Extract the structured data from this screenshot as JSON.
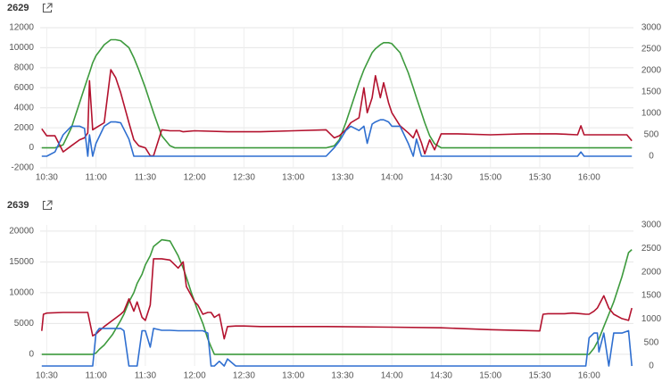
{
  "chart_data": [
    {
      "type": "line",
      "title": "2629",
      "x": [
        627,
        630,
        635,
        640,
        645,
        650,
        653,
        655,
        656,
        658,
        660,
        665,
        669,
        672,
        675,
        680,
        683,
        686,
        690,
        693,
        695,
        700,
        705,
        708,
        711,
        713,
        720,
        740,
        760,
        780,
        800,
        805,
        808,
        812,
        815,
        820,
        823,
        825,
        828,
        830,
        833,
        835,
        838,
        840,
        845,
        850,
        853,
        855,
        858,
        860,
        863,
        866,
        870,
        880,
        900,
        920,
        940,
        953,
        955,
        957,
        960,
        975,
        983,
        986
      ],
      "series": [
        {
          "color": "#3d9a3d",
          "values": [
            0,
            0,
            0,
            300,
            2000,
            4500,
            6000,
            7000,
            7500,
            8500,
            9200,
            10300,
            10800,
            10800,
            10700,
            10000,
            9000,
            7800,
            6000,
            4500,
            3500,
            1200,
            200,
            0,
            0,
            0,
            0,
            0,
            0,
            0,
            0,
            200,
            800,
            2500,
            4000,
            6500,
            7800,
            8500,
            9500,
            9900,
            10300,
            10500,
            10500,
            10400,
            9500,
            7500,
            6000,
            5000,
            3500,
            2500,
            1200,
            400,
            0,
            0,
            0,
            0,
            0,
            0,
            0,
            0,
            0,
            0,
            0,
            0
          ]
        },
        {
          "color": "#b3122e",
          "values": [
            1900,
            1200,
            1200,
            -400,
            200,
            800,
            1000,
            1500,
            6700,
            1800,
            2000,
            2500,
            7800,
            7000,
            5500,
            2500,
            800,
            200,
            0,
            -800,
            -800,
            1800,
            1700,
            1700,
            1700,
            1600,
            1700,
            1600,
            1600,
            1700,
            1800,
            1000,
            1200,
            1800,
            2500,
            3000,
            6000,
            3500,
            5000,
            7200,
            5000,
            6500,
            4500,
            3500,
            2200,
            1500,
            1000,
            1800,
            500,
            -600,
            800,
            -200,
            1400,
            1400,
            1300,
            1400,
            1400,
            1300,
            2200,
            1300,
            1300,
            1300,
            1300,
            700
          ]
        },
        {
          "color": "#2f6fd0",
          "axis": "y2",
          "values": [
            0,
            0,
            100,
            500,
            700,
            700,
            650,
            0,
            500,
            0,
            300,
            700,
            800,
            800,
            780,
            400,
            0,
            0,
            0,
            0,
            0,
            0,
            0,
            0,
            0,
            0,
            0,
            0,
            0,
            0,
            0,
            200,
            350,
            600,
            700,
            600,
            700,
            300,
            750,
            800,
            850,
            850,
            800,
            700,
            700,
            300,
            0,
            400,
            0,
            0,
            0,
            0,
            0,
            0,
            0,
            0,
            0,
            0,
            100,
            0,
            0,
            0,
            0,
            0
          ]
        }
      ],
      "xlim": [
        626,
        987
      ],
      "xticks": [
        {
          "value": 630,
          "label": "10:30"
        },
        {
          "value": 660,
          "label": "11:00"
        },
        {
          "value": 690,
          "label": "11:30"
        },
        {
          "value": 720,
          "label": "12:00"
        },
        {
          "value": 750,
          "label": "12:30"
        },
        {
          "value": 780,
          "label": "13:00"
        },
        {
          "value": 810,
          "label": "13:30"
        },
        {
          "value": 840,
          "label": "14:00"
        },
        {
          "value": 870,
          "label": "14:30"
        },
        {
          "value": 900,
          "label": "15:00"
        },
        {
          "value": 930,
          "label": "15:30"
        },
        {
          "value": 960,
          "label": "16:00"
        }
      ],
      "ylim": [
        -2000,
        12000
      ],
      "yticks": [
        -2000,
        0,
        2000,
        4000,
        6000,
        8000,
        10000,
        12000
      ],
      "y2lim": [
        -270,
        3000
      ],
      "y2ticks": [
        0,
        500,
        1000,
        1500,
        2000,
        2500,
        3000
      ],
      "grid": true
    },
    {
      "type": "line",
      "title": "2639",
      "x": [
        627,
        628,
        630,
        640,
        650,
        655,
        658,
        660,
        662,
        665,
        670,
        675,
        677,
        680,
        683,
        685,
        688,
        690,
        693,
        695,
        700,
        705,
        710,
        713,
        715,
        718,
        720,
        722,
        725,
        728,
        730,
        732,
        735,
        738,
        740,
        745,
        750,
        760,
        780,
        800,
        840,
        870,
        900,
        930,
        932,
        935,
        940,
        945,
        950,
        955,
        958,
        960,
        963,
        965,
        966,
        969,
        972,
        975,
        980,
        984,
        986
      ],
      "series": [
        {
          "color": "#3d9a3d",
          "values": [
            0,
            0,
            0,
            0,
            0,
            0,
            0,
            200,
            800,
            1500,
            3200,
            5500,
            6500,
            8500,
            10000,
            11500,
            13000,
            14500,
            16000,
            17500,
            18600,
            18400,
            16000,
            14000,
            12500,
            10000,
            8500,
            7000,
            5000,
            2500,
            1200,
            0,
            0,
            0,
            0,
            0,
            0,
            0,
            0,
            0,
            0,
            0,
            0,
            0,
            0,
            0,
            0,
            0,
            0,
            0,
            0,
            0,
            1000,
            2000,
            2500,
            4500,
            6500,
            8500,
            12600,
            16500,
            17000
          ]
        },
        {
          "color": "#b3122e",
          "values": [
            3800,
            6500,
            6700,
            6800,
            6800,
            6800,
            3000,
            3300,
            3800,
            4500,
            5500,
            6500,
            7000,
            9000,
            7000,
            8500,
            6000,
            5500,
            8000,
            15500,
            15500,
            15300,
            14000,
            15000,
            11000,
            9500,
            8500,
            8000,
            6500,
            6800,
            6800,
            6000,
            6500,
            2500,
            4500,
            4600,
            4600,
            4500,
            4500,
            4500,
            4400,
            4300,
            4000,
            3800,
            6500,
            6600,
            6600,
            6600,
            6700,
            6600,
            6500,
            6500,
            7000,
            7500,
            8000,
            9500,
            7500,
            6500,
            5800,
            5500,
            7500
          ]
        },
        {
          "color": "#2f6fd0",
          "axis": "y2",
          "values": [
            0,
            0,
            0,
            0,
            0,
            0,
            0,
            700,
            800,
            800,
            800,
            800,
            750,
            0,
            0,
            0,
            750,
            750,
            400,
            800,
            760,
            760,
            750,
            750,
            750,
            750,
            750,
            750,
            750,
            700,
            0,
            0,
            100,
            0,
            150,
            0,
            0,
            0,
            0,
            0,
            0,
            0,
            0,
            0,
            0,
            0,
            0,
            0,
            0,
            0,
            0,
            600,
            700,
            700,
            300,
            700,
            0,
            700,
            700,
            750,
            0
          ]
        }
      ],
      "xlim": [
        626,
        987
      ],
      "xticks": [
        {
          "value": 630,
          "label": "10:30"
        },
        {
          "value": 660,
          "label": "11:00"
        },
        {
          "value": 690,
          "label": "11:30"
        },
        {
          "value": 720,
          "label": "12:00"
        },
        {
          "value": 750,
          "label": "12:30"
        },
        {
          "value": 780,
          "label": "13:00"
        },
        {
          "value": 810,
          "label": "13:30"
        },
        {
          "value": 840,
          "label": "14:00"
        },
        {
          "value": 870,
          "label": "14:30"
        },
        {
          "value": 900,
          "label": "15:00"
        },
        {
          "value": 930,
          "label": "15:30"
        },
        {
          "value": 960,
          "label": "16:00"
        }
      ],
      "ylim": [
        -1900,
        21000
      ],
      "yticks": [
        0,
        5000,
        10000,
        15000,
        20000
      ],
      "y2lim": [
        0,
        3000
      ],
      "y2ticks": [
        0,
        500,
        1000,
        1500,
        2000,
        2500,
        3000
      ],
      "grid": true
    }
  ]
}
